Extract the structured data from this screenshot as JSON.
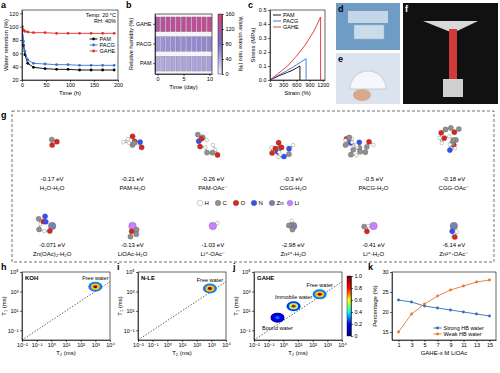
{
  "chart_data": [
    {
      "panel": "a",
      "type": "line",
      "xlabel": "Time (h)",
      "ylabel": "Water retention (%)",
      "annotations": [
        "Temp: 20 °C",
        "RH: 40%"
      ],
      "x": [
        0,
        3,
        6,
        12,
        24,
        48,
        72,
        96,
        120,
        144,
        168,
        192
      ],
      "xlim": [
        0,
        200
      ],
      "xticks": [
        0,
        50,
        100,
        150,
        200
      ],
      "ylim": [
        20,
        125
      ],
      "yticks": [
        20,
        40,
        60,
        80,
        100,
        120
      ],
      "marker": "circle",
      "legend": "center right",
      "series": [
        {
          "name": "PAM",
          "color": "#000000",
          "values": [
            100,
            72,
            58,
            45,
            39,
            37,
            36,
            36,
            35,
            35,
            35,
            35
          ]
        },
        {
          "name": "PACG",
          "color": "#3a6fd8",
          "values": [
            100,
            78,
            63,
            50,
            45,
            44,
            43,
            43,
            42,
            42,
            42,
            42
          ]
        },
        {
          "name": "GAHE",
          "color": "#e0312b",
          "values": [
            100,
            95,
            93,
            92,
            91,
            91,
            90,
            90,
            90,
            90,
            90,
            90
          ]
        }
      ]
    },
    {
      "panel": "b",
      "type": "heatmap",
      "xlabel": "Time (day)",
      "zlabel": "Relative humidity (%)",
      "colorbar_label": "Water uptake ratio (%)",
      "x": [
        0,
        1,
        2,
        3,
        4,
        5,
        6,
        7,
        8,
        9,
        10
      ],
      "xlim": [
        -0.5,
        10.5
      ],
      "xticks": [
        0,
        5,
        10
      ],
      "categories": [
        "PAM",
        "PACG",
        "GAHE"
      ],
      "values": [
        [
          42,
          44,
          45,
          46,
          46,
          47,
          47,
          47,
          48,
          48,
          48
        ],
        [
          55,
          58,
          60,
          61,
          62,
          62,
          63,
          63,
          64,
          64,
          64
        ],
        [
          120,
          124,
          127,
          129,
          130,
          131,
          132,
          132,
          133,
          133,
          134
        ]
      ],
      "colorbar_lim": [
        0,
        160
      ],
      "colorbar_ticks": [
        0,
        40,
        80,
        120,
        160
      ],
      "colors": [
        "#f3eefa",
        "#7b6fc6",
        "#e23d7a"
      ]
    },
    {
      "panel": "c",
      "type": "line",
      "xlabel": "Strain (%)",
      "ylabel": "Stress (MPa)",
      "xlim": [
        0,
        1250
      ],
      "xticks": [
        0,
        300,
        600,
        900,
        1200
      ],
      "ylim": [
        0,
        0.5
      ],
      "yticks": [
        {
          "value": 0,
          "label": "0.0"
        },
        0.1,
        0.2,
        0.3,
        0.4,
        0.5
      ],
      "legend": "upper left",
      "series": [
        {
          "name": "PAM",
          "color": "#000000",
          "x": [
            0,
            100,
            200,
            300,
            400,
            500,
            600,
            680,
            680
          ],
          "values": [
            0,
            0.015,
            0.03,
            0.042,
            0.055,
            0.068,
            0.085,
            0.1,
            0
          ]
        },
        {
          "name": "PACG",
          "color": "#3a6fd8",
          "x": [
            0,
            100,
            200,
            300,
            400,
            500,
            600,
            700,
            820,
            820
          ],
          "values": [
            0,
            0.018,
            0.035,
            0.052,
            0.07,
            0.088,
            0.108,
            0.128,
            0.152,
            0
          ]
        },
        {
          "name": "GAHE",
          "color": "#e0312b",
          "x": [
            0,
            200,
            400,
            600,
            800,
            1000,
            1150,
            1150
          ],
          "values": [
            0,
            0.05,
            0.1,
            0.17,
            0.25,
            0.35,
            0.45,
            0
          ]
        }
      ]
    },
    {
      "panel": "h",
      "type": "contour",
      "title": "KOH",
      "xlabel": "T₂ (ms)",
      "ylabel": "T₁ (ms)",
      "log": true,
      "xlim": [
        0.01,
        10000
      ],
      "xticks": [
        {
          "value": 0.01,
          "label": "10⁻²"
        },
        {
          "value": 0.1,
          "label": "10⁻¹"
        },
        {
          "value": 1,
          "label": "10⁰"
        },
        {
          "value": 10,
          "label": "10¹"
        },
        {
          "value": 100,
          "label": "10²"
        },
        {
          "value": 1000,
          "label": "10³"
        },
        {
          "value": 10000,
          "label": "10⁴"
        }
      ],
      "ylim": [
        0.01,
        100000
      ],
      "yticks": [
        {
          "value": 0.1,
          "label": "10⁻¹"
        },
        {
          "value": 10,
          "label": "10¹"
        },
        {
          "value": 1000,
          "label": "10³"
        },
        {
          "value": 100000,
          "label": "10⁵"
        }
      ],
      "colorbar_lim": [
        0,
        1
      ],
      "colors": [
        "#00007f",
        "#0000ff",
        "#00ffff",
        "#ffff00",
        "#ff0000",
        "#7f0000"
      ],
      "peaks": [
        {
          "name": "Free water",
          "T2": 1000,
          "T1": 3000,
          "intensity": 1
        }
      ]
    },
    {
      "panel": "i",
      "type": "contour",
      "title": "N-LE",
      "xlabel": "T₂ (ms)",
      "ylabel": "T₁ (ms)",
      "log": true,
      "xlim": [
        0.01,
        10000
      ],
      "xticks": [
        {
          "value": 0.01,
          "label": "10⁻²"
        },
        {
          "value": 0.1,
          "label": "10⁻¹"
        },
        {
          "value": 1,
          "label": "10⁰"
        },
        {
          "value": 10,
          "label": "10¹"
        },
        {
          "value": 100,
          "label": "10²"
        },
        {
          "value": 1000,
          "label": "10³"
        },
        {
          "value": 10000,
          "label": "10⁴"
        }
      ],
      "ylim": [
        0.01,
        100000
      ],
      "yticks": [
        {
          "value": 0.1,
          "label": "10⁻¹"
        },
        {
          "value": 10,
          "label": "10¹"
        },
        {
          "value": 1000,
          "label": "10³"
        },
        {
          "value": 100000,
          "label": "10⁵"
        }
      ],
      "colorbar_lim": [
        0,
        1
      ],
      "colors": [
        "#00007f",
        "#0000ff",
        "#00ffff",
        "#ffff00",
        "#ff0000",
        "#7f0000"
      ],
      "peaks": [
        {
          "name": "Free water",
          "T2": 800,
          "T1": 2000,
          "intensity": 1
        }
      ]
    },
    {
      "panel": "j",
      "type": "contour",
      "title": "GAHE",
      "xlabel": "T₂ (ms)",
      "ylabel": "T₁ (ms)",
      "log": true,
      "xlim": [
        0.01,
        10000
      ],
      "xticks": [
        {
          "value": 0.01,
          "label": "10⁻²"
        },
        {
          "value": 0.1,
          "label": "10⁻¹"
        },
        {
          "value": 1,
          "label": "10⁰"
        },
        {
          "value": 10,
          "label": "10¹"
        },
        {
          "value": 100,
          "label": "10²"
        },
        {
          "value": 1000,
          "label": "10³"
        },
        {
          "value": 10000,
          "label": "10⁴"
        }
      ],
      "ylim": [
        0.01,
        100000
      ],
      "yticks": [
        {
          "value": 0.1,
          "label": "10⁻¹"
        },
        {
          "value": 10,
          "label": "10¹"
        },
        {
          "value": 1000,
          "label": "10³"
        },
        {
          "value": 100000,
          "label": "10⁵"
        }
      ],
      "colorbar_lim": [
        0,
        1
      ],
      "colorbar_ticks": [
        0,
        0.2,
        0.4,
        0.6,
        0.8,
        {
          "value": 1,
          "label": "1.0"
        }
      ],
      "colors": [
        "#00007f",
        "#0000ff",
        "#00ffff",
        "#ffff00",
        "#ff0000",
        "#7f0000"
      ],
      "peaks": [
        {
          "name": "Free water",
          "T2": 300,
          "T1": 500,
          "intensity": 1
        },
        {
          "name": "Immobile water",
          "T2": 5,
          "T1": 30,
          "intensity": 0.8
        },
        {
          "name": "Bound water",
          "T2": 0.4,
          "T1": 2,
          "intensity": 0.3
        }
      ]
    },
    {
      "panel": "k",
      "type": "line",
      "xlabel": "GAHE-x M LiOAc",
      "ylabel": "Percentage (%)",
      "x": [
        1,
        3,
        5,
        7,
        9,
        11,
        13,
        15
      ],
      "xlim": [
        0,
        16
      ],
      "xticks": [
        1,
        3,
        5,
        7,
        9,
        11,
        13,
        15
      ],
      "ylim": [
        13,
        30
      ],
      "yticks": [
        15,
        20,
        25,
        30
      ],
      "marker": "circle",
      "legend": "lower right",
      "series": [
        {
          "name": "Strong HB water",
          "color": "#2f6db5",
          "values": [
            23,
            22.5,
            21.5,
            21,
            20.5,
            20,
            19.5,
            19
          ]
        },
        {
          "name": "Weak HB water",
          "color": "#e8772e",
          "values": [
            15,
            19.5,
            22,
            24,
            25.5,
            26.5,
            27.5,
            28
          ]
        }
      ]
    }
  ],
  "photos": [
    {
      "panel": "d"
    },
    {
      "panel": "e"
    },
    {
      "panel": "f"
    }
  ],
  "diagram": {
    "panel": "g",
    "complexes": [
      {
        "energy": "-0.17 eV",
        "label": "H₂O-H₂O"
      },
      {
        "energy": "-0.21 eV",
        "label": "PAM-H₂O"
      },
      {
        "energy": "-0.26 eV",
        "label": "PAM-OAc⁻"
      },
      {
        "energy": "-0.3 eV",
        "label": "CGG-H₂O"
      },
      {
        "energy": "-0.5 eV",
        "label": "PACG-H₂O"
      },
      {
        "energy": "-0.18 eV",
        "label": "CGG-OAc⁻"
      },
      {
        "energy": "-0.071 eV",
        "label": "Zn(OAc)₂-H₂O"
      },
      {
        "energy": "-0.13 eV",
        "label": "LiOAc-H₂O"
      },
      {
        "energy": "-1.03 eV",
        "label": "Li⁺-OAc⁻"
      },
      {
        "energy": "-2.98 eV",
        "label": "Zn²⁺-H₂O"
      },
      {
        "energy": "-0.41 eV",
        "label": "Li⁺-H₂O"
      },
      {
        "energy": "-6.14 eV",
        "label": "Zn²⁺-OAc⁻"
      }
    ],
    "atoms": [
      {
        "symbol": "H",
        "color": "#ffffff"
      },
      {
        "symbol": "C",
        "color": "#909090"
      },
      {
        "symbol": "O",
        "color": "#e0231a"
      },
      {
        "symbol": "N",
        "color": "#3050f8"
      },
      {
        "symbol": "Zn",
        "color": "#7d80b0"
      },
      {
        "symbol": "Li",
        "color": "#cc80ff"
      }
    ]
  }
}
